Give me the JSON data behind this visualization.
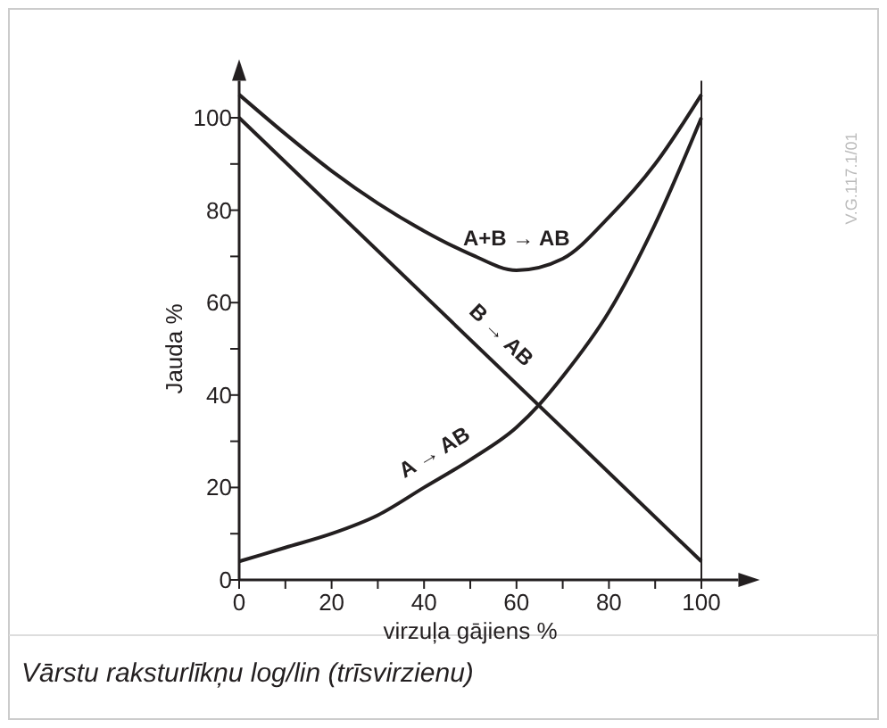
{
  "chart_data": {
    "type": "line",
    "xlabel": "virzuļa gājiens %",
    "ylabel": "Jauda %",
    "xlim": [
      0,
      108
    ],
    "ylim": [
      0,
      108
    ],
    "xticks": [
      0,
      {
        "value": 10,
        "label": null
      },
      20,
      {
        "value": 30,
        "label": null
      },
      40,
      {
        "value": 50,
        "label": null
      },
      60,
      {
        "value": 70,
        "label": null
      },
      80,
      {
        "value": 90,
        "label": null
      },
      100
    ],
    "yticks": [
      0,
      {
        "value": 10,
        "label": null
      },
      20,
      {
        "value": 30,
        "label": null
      },
      40,
      {
        "value": 50,
        "label": null
      },
      60,
      {
        "value": 70,
        "label": null
      },
      80,
      {
        "value": 90,
        "label": null
      },
      100
    ],
    "grid": false,
    "marker": "none",
    "line_style": "solid",
    "series": [
      {
        "name": "A+B → AB",
        "color": "#231f20",
        "x": [
          0,
          10,
          20,
          30,
          40,
          50,
          60,
          70,
          80,
          90,
          100
        ],
        "values": [
          105,
          96.5,
          88.5,
          81.5,
          75.5,
          70.5,
          67,
          69.5,
          78.5,
          90,
          105
        ]
      },
      {
        "name": "B → AB",
        "color": "#231f20",
        "x": [
          0,
          100
        ],
        "values": [
          100,
          4
        ]
      },
      {
        "name": "A → AB",
        "color": "#231f20",
        "x": [
          0,
          10,
          20,
          30,
          40,
          50,
          60,
          65,
          70,
          80,
          90,
          100
        ],
        "values": [
          4,
          7,
          10,
          14,
          20,
          26,
          33,
          38,
          44,
          58,
          77,
          100
        ]
      }
    ],
    "ref_lines": [
      {
        "axis": "x",
        "value": 100,
        "color": "#231f20"
      }
    ],
    "annotations": [
      "Vārstu raksturlīkņu log/lin (trīsvirzienu)",
      "V.G.117.1/01"
    ]
  }
}
